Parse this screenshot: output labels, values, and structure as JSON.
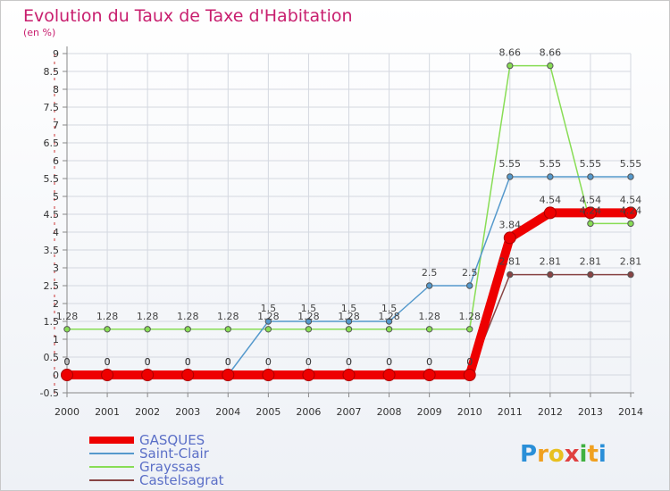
{
  "chart_data": {
    "type": "line",
    "title": "Evolution du Taux de Taxe d'Habitation",
    "subtitle": "(en %)",
    "xlabel": "",
    "ylabel": "",
    "x": [
      2000,
      2001,
      2002,
      2003,
      2004,
      2005,
      2006,
      2007,
      2008,
      2009,
      2010,
      2011,
      2012,
      2013,
      2014
    ],
    "ylim": [
      -0.5,
      9
    ],
    "yticks": [
      "-0.5",
      "0",
      "0.5",
      "1",
      "1.5",
      "2",
      "2.5",
      "3",
      "3.5",
      "4",
      "4.5",
      "5",
      "5.5",
      "6",
      "6.5",
      "7",
      "7.5",
      "8",
      "8.5",
      "9"
    ],
    "grid": true,
    "legend_position": "bottom-left",
    "series": [
      {
        "name": "GASQUES",
        "color": "#ee0000",
        "values": [
          0,
          0,
          0,
          0,
          0,
          0,
          0,
          0,
          0,
          0,
          0,
          3.84,
          4.54,
          4.54,
          4.54
        ],
        "labels": [
          "0",
          "0",
          "0",
          "0",
          "0",
          "0",
          "0",
          "0",
          "0",
          "0",
          "0",
          "3.84",
          "4.54",
          "4.54",
          "4.54"
        ]
      },
      {
        "name": "Saint-Clair",
        "color": "#5599cc",
        "values": [
          0,
          0,
          0,
          0,
          0,
          1.5,
          1.5,
          1.5,
          1.5,
          2.5,
          2.5,
          5.55,
          5.55,
          5.55,
          5.55
        ],
        "labels": [
          "0",
          "0",
          "0",
          "0",
          "0",
          "1.5",
          "1.5",
          "1.5",
          "1.5",
          "2.5",
          "2.5",
          "5.55",
          "5.55",
          "5.55",
          "5.55"
        ]
      },
      {
        "name": "Grayssas",
        "color": "#88dd55",
        "values": [
          1.28,
          1.28,
          1.28,
          1.28,
          1.28,
          1.28,
          1.28,
          1.28,
          1.28,
          1.28,
          1.28,
          8.66,
          8.66,
          4.24,
          4.24
        ],
        "labels": [
          "1.28",
          "1.28",
          "1.28",
          "1.28",
          "1.28",
          "1.28",
          "1.28",
          "1.28",
          "1.28",
          "1.28",
          "1.28",
          "8.66",
          "8.66",
          "4.24",
          "4.24"
        ]
      },
      {
        "name": "Castelsagrat",
        "color": "#884444",
        "values": [
          0,
          0,
          0,
          0,
          0,
          0,
          0,
          0,
          0,
          0,
          0,
          2.81,
          2.81,
          2.81,
          2.81
        ],
        "labels": [
          "0",
          "0",
          "0",
          "0",
          "0",
          "0",
          "0",
          "0",
          "0",
          "0",
          "0",
          "2.81",
          "2.81",
          "2.81",
          "2.81"
        ]
      }
    ]
  },
  "logo": {
    "text": "Proxiti"
  }
}
